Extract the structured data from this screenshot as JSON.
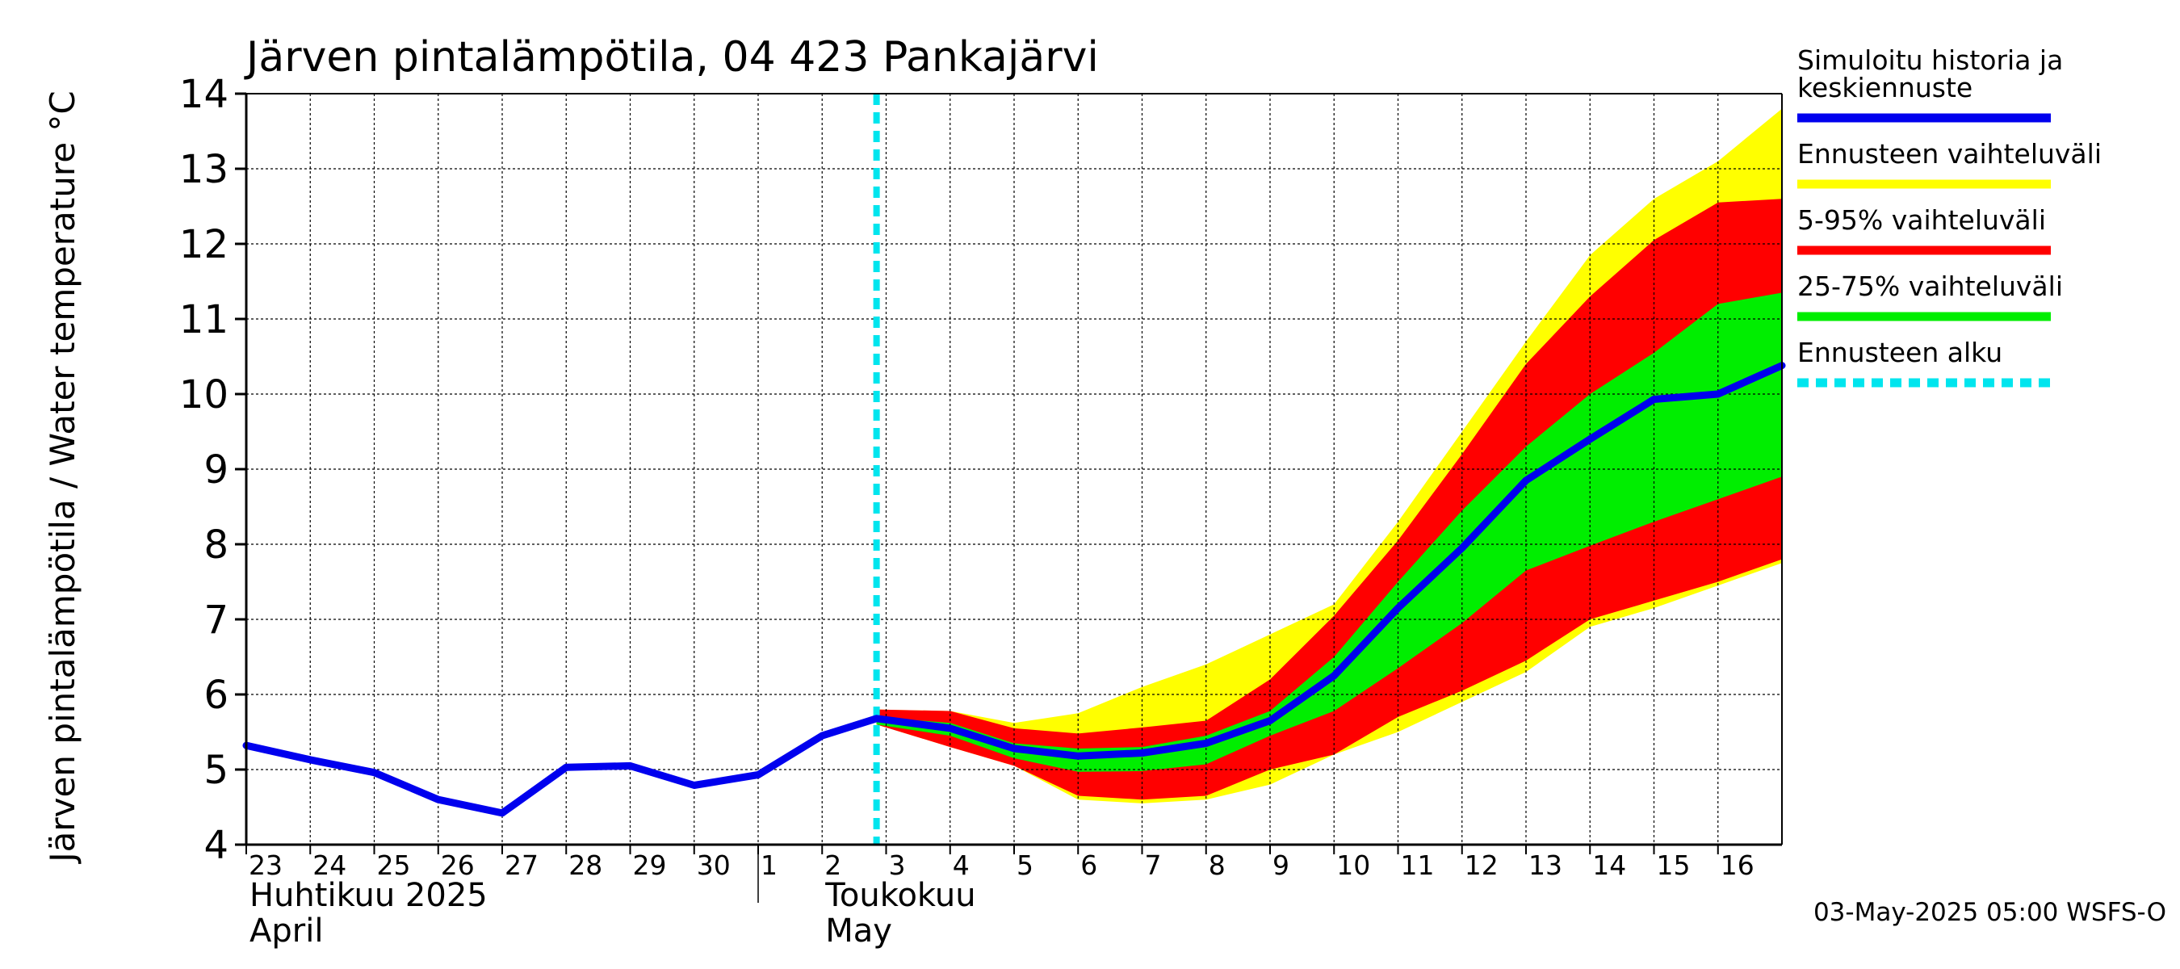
{
  "chart_data": {
    "type": "area",
    "title": "Järven pintalämpötila, 04 423 Pankajärvi",
    "ylabel": "Järven pintalämpötila / Water temperature °C",
    "ylim": [
      4,
      14
    ],
    "yticks": [
      4,
      5,
      6,
      7,
      8,
      9,
      10,
      11,
      12,
      13,
      14
    ],
    "xlim": [
      -10.0,
      14.0
    ],
    "xtick_labels": [
      {
        "x": -10,
        "label": "23"
      },
      {
        "x": -9,
        "label": "24"
      },
      {
        "x": -8,
        "label": "25"
      },
      {
        "x": -7,
        "label": "26"
      },
      {
        "x": -6,
        "label": "27"
      },
      {
        "x": -5,
        "label": "28"
      },
      {
        "x": -4,
        "label": "29"
      },
      {
        "x": -3,
        "label": "30"
      },
      {
        "x": -2,
        "label": "1"
      },
      {
        "x": -1,
        "label": "2"
      },
      {
        "x": 0,
        "label": "3"
      },
      {
        "x": 1,
        "label": "4"
      },
      {
        "x": 2,
        "label": "5"
      },
      {
        "x": 3,
        "label": "6"
      },
      {
        "x": 4,
        "label": "7"
      },
      {
        "x": 5,
        "label": "8"
      },
      {
        "x": 6,
        "label": "9"
      },
      {
        "x": 7,
        "label": "10"
      },
      {
        "x": 8,
        "label": "11"
      },
      {
        "x": 9,
        "label": "12"
      },
      {
        "x": 10,
        "label": "13"
      },
      {
        "x": 11,
        "label": "14"
      },
      {
        "x": 12,
        "label": "15"
      },
      {
        "x": 13,
        "label": "16"
      }
    ],
    "month_labels": [
      {
        "x": -10,
        "line1": "Huhtikuu  2025",
        "line2": "April"
      },
      {
        "x": -1,
        "line1": "Toukokuu",
        "line2": "May"
      }
    ],
    "month_divider_x": -2,
    "forecast_start_x": -0.15,
    "grid": true,
    "legend_position": "right",
    "series": [
      {
        "name": "Ennusteen vaihteluväli",
        "kind": "band",
        "color": "#ffff00",
        "x": [
          -0.15,
          1,
          2,
          3,
          4,
          5,
          6,
          7,
          8,
          9,
          10,
          11,
          12,
          13,
          14
        ],
        "upper": [
          5.8,
          5.78,
          5.62,
          5.75,
          6.1,
          6.4,
          6.8,
          7.2,
          8.3,
          9.5,
          10.7,
          11.85,
          12.6,
          13.1,
          13.8
        ],
        "lower": [
          5.6,
          5.3,
          5.05,
          4.6,
          4.55,
          4.6,
          4.8,
          5.2,
          5.5,
          5.9,
          6.3,
          6.9,
          7.15,
          7.45,
          7.75
        ]
      },
      {
        "name": "5-95% vaihteluväli",
        "kind": "band",
        "color": "#ff0000",
        "x": [
          -0.15,
          1,
          2,
          3,
          4,
          5,
          6,
          7,
          8,
          9,
          10,
          11,
          12,
          13,
          14
        ],
        "upper": [
          5.8,
          5.78,
          5.55,
          5.48,
          5.56,
          5.65,
          6.2,
          7.05,
          8.05,
          9.2,
          10.4,
          11.3,
          12.05,
          12.55,
          12.6
        ],
        "lower": [
          5.6,
          5.3,
          5.05,
          4.65,
          4.6,
          4.65,
          5.0,
          5.2,
          5.7,
          6.05,
          6.45,
          7.0,
          7.25,
          7.5,
          7.8
        ]
      },
      {
        "name": "25-75% vaihteluväli",
        "kind": "band",
        "color": "#00ee00",
        "x": [
          -0.15,
          1,
          2,
          3,
          4,
          5,
          6,
          7,
          8,
          9,
          10,
          11,
          12,
          13,
          14
        ],
        "upper": [
          5.7,
          5.62,
          5.35,
          5.28,
          5.3,
          5.45,
          5.78,
          6.5,
          7.5,
          8.45,
          9.3,
          10.0,
          10.55,
          11.2,
          11.35
        ],
        "lower": [
          5.6,
          5.45,
          5.15,
          4.97,
          4.98,
          5.07,
          5.45,
          5.78,
          6.35,
          6.95,
          7.65,
          7.98,
          8.3,
          8.6,
          8.9
        ]
      },
      {
        "name": "Simuloitu historia ja keskiennuste",
        "kind": "line",
        "color": "#0000ee",
        "x": [
          -10.0,
          -9,
          -8,
          -7,
          -6,
          -5,
          -4,
          -3,
          -2,
          -1,
          -0.15,
          1,
          2,
          3,
          4,
          5,
          6,
          7,
          8,
          9,
          10,
          11,
          12,
          13,
          14
        ],
        "y": [
          5.32,
          5.13,
          4.96,
          4.6,
          4.42,
          5.03,
          5.05,
          4.79,
          4.93,
          5.45,
          5.68,
          5.55,
          5.28,
          5.18,
          5.22,
          5.35,
          5.65,
          6.25,
          7.15,
          7.95,
          8.85,
          9.4,
          9.93,
          10.0,
          10.38
        ]
      }
    ]
  },
  "legend": [
    {
      "label_lines": [
        "Simuloitu historia ja",
        "keskiennuste"
      ],
      "color": "#0000ee",
      "style": "solid"
    },
    {
      "label_lines": [
        "Ennusteen vaihteluväli"
      ],
      "color": "#ffff00",
      "style": "solid"
    },
    {
      "label_lines": [
        "5-95% vaihteluväli"
      ],
      "color": "#ff0000",
      "style": "solid"
    },
    {
      "label_lines": [
        "25-75% vaihteluväli"
      ],
      "color": "#00ee00",
      "style": "solid"
    },
    {
      "label_lines": [
        "Ennusteen alku"
      ],
      "color": "#00e5ee",
      "style": "dashed"
    }
  ],
  "footer": "03-May-2025 05:00 WSFS-O"
}
